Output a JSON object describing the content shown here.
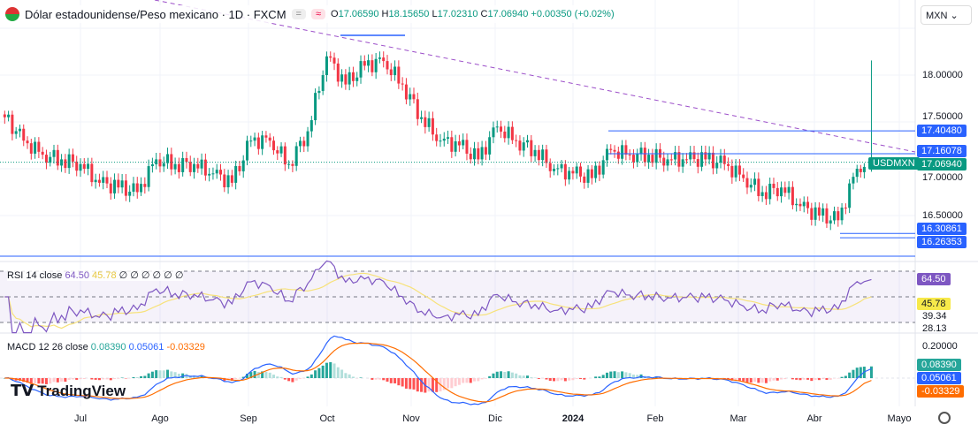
{
  "header": {
    "title": "Dólar estadounidense/Peso mexicano · 1D · FXCM",
    "chip1": "=",
    "chip2": "≈",
    "open_label": "O",
    "open": "17.06590",
    "high_label": "H",
    "high": "18.15650",
    "low_label": "L",
    "low": "17.02310",
    "close_label": "C",
    "close": "17.06940",
    "change": "+0.00350 (+0.02%)"
  },
  "currency_select": "MXN ⌄",
  "price_axis": [
    "18.00000",
    "17.50000",
    "17.00000",
    "16.50000"
  ],
  "price_tags": [
    {
      "v": "17.40480",
      "color": "#2962ff"
    },
    {
      "v": "17.16078",
      "color": "#2962ff"
    },
    {
      "v": "17.06940",
      "color": "#089981"
    },
    {
      "v": "16.30861",
      "color": "#2962ff"
    },
    {
      "v": "16.26353",
      "color": "#2962ff"
    }
  ],
  "symbol_tag": "USDMXN",
  "rsi": {
    "label": "RSI 14 close",
    "value": "64.50",
    "ma": "45.78",
    "extras": "∅ ∅ ∅ ∅ ∅ ∅",
    "axis": [
      "64.50",
      "45.78",
      "39.34",
      "28.13"
    ]
  },
  "macd": {
    "label": "MACD 12 26 close",
    "macd": "0.08390",
    "signal": "0.05061",
    "hist": "-0.03329",
    "axis": "0.20000"
  },
  "time_axis": [
    "Jul",
    "Ago",
    "Sep",
    "Oct",
    "Nov",
    "Dic",
    "2024",
    "Feb",
    "Mar",
    "Abr",
    "Mayo"
  ],
  "logo": "TradingView",
  "colors": {
    "up": "#089981",
    "down": "#f23645",
    "rsi": "#7e57c2",
    "rsi_ma": "#f7e27a",
    "macd": "#2962ff",
    "signal": "#ff6d00"
  },
  "chart_data": {
    "type": "candlestick",
    "symbol": "USDMXN",
    "interval": "1D",
    "x": [
      "2023-06-05",
      "2023-06-12",
      "2023-06-19",
      "2023-06-26",
      "2023-07-03",
      "2023-07-10",
      "2023-07-17",
      "2023-07-24",
      "2023-07-31",
      "2023-08-07",
      "2023-08-14",
      "2023-08-21",
      "2023-08-28",
      "2023-09-04",
      "2023-09-11",
      "2023-09-18",
      "2023-09-25",
      "2023-10-02",
      "2023-10-09",
      "2023-10-16",
      "2023-10-23",
      "2023-10-30",
      "2023-11-06",
      "2023-11-13",
      "2023-11-20",
      "2023-11-27",
      "2023-12-04",
      "2023-12-11",
      "2023-12-18",
      "2023-12-25",
      "2024-01-01",
      "2024-01-08",
      "2024-01-15",
      "2024-01-22",
      "2024-01-29",
      "2024-02-05",
      "2024-02-12",
      "2024-02-19",
      "2024-02-26",
      "2024-03-04",
      "2024-03-11",
      "2024-03-18",
      "2024-03-25",
      "2024-04-01",
      "2024-04-08",
      "2024-04-15",
      "2024-04-19"
    ],
    "close": [
      17.55,
      17.3,
      17.15,
      17.1,
      17.05,
      16.85,
      16.8,
      16.75,
      17.1,
      17.05,
      17.05,
      16.95,
      16.85,
      17.3,
      17.3,
      17.05,
      17.4,
      18.2,
      17.9,
      18.1,
      18.15,
      17.9,
      17.55,
      17.3,
      17.25,
      17.1,
      17.45,
      17.3,
      17.2,
      17.0,
      16.95,
      16.9,
      17.2,
      17.15,
      17.15,
      17.1,
      17.1,
      17.1,
      17.05,
      16.9,
      16.75,
      16.8,
      16.6,
      16.5,
      16.45,
      17.0,
      17.07
    ],
    "last_high": 18.1565,
    "ylim": [
      16.0,
      18.5
    ],
    "hlines": [
      17.4048,
      17.16078,
      16.30861,
      16.26353
    ],
    "rsi_band": [
      30,
      70
    ]
  }
}
